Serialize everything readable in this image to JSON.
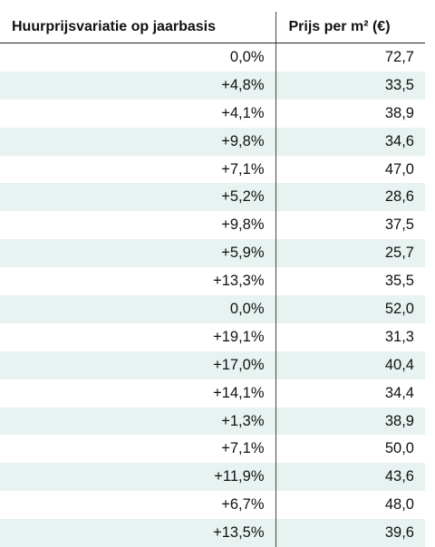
{
  "table": {
    "headers": [
      "Huurprijsvariatie op jaarbasis",
      "Prijs per m² (€)"
    ],
    "rows": [
      [
        "0,0%",
        "72,7"
      ],
      [
        "+4,8%",
        "33,5"
      ],
      [
        "+4,1%",
        "38,9"
      ],
      [
        "+9,8%",
        "34,6"
      ],
      [
        "+7,1%",
        "47,0"
      ],
      [
        "+5,2%",
        "28,6"
      ],
      [
        "+9,8%",
        "37,5"
      ],
      [
        "+5,9%",
        "25,7"
      ],
      [
        "+13,3%",
        "35,5"
      ],
      [
        "0,0%",
        "52,0"
      ],
      [
        "+19,1%",
        "31,3"
      ],
      [
        "+17,0%",
        "40,4"
      ],
      [
        "+14,1%",
        "34,4"
      ],
      [
        "+1,3%",
        "38,9"
      ],
      [
        "+7,1%",
        "50,0"
      ],
      [
        "+11,9%",
        "43,6"
      ],
      [
        "+6,7%",
        "48,0"
      ],
      [
        "+13,5%",
        "39,6"
      ]
    ],
    "stripe_color": "#e8f3f1"
  }
}
